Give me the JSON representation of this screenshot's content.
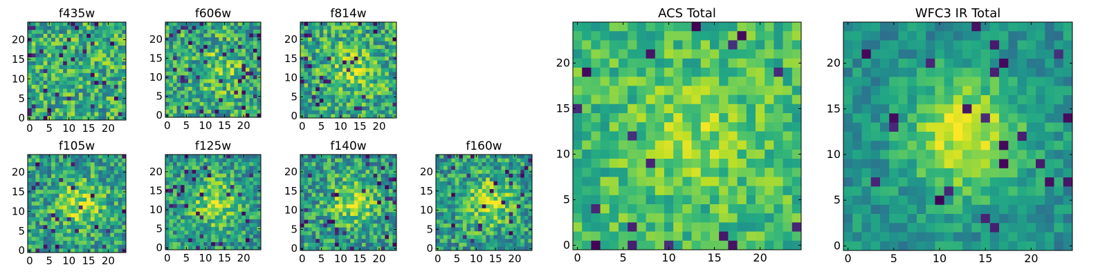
{
  "chart_data": [
    {
      "type": "heatmap",
      "title": "f435w",
      "grid_size": 25,
      "colormap": "viridis",
      "x_ticks": [
        "0",
        "5",
        "10",
        "15",
        "20"
      ],
      "y_ticks": [
        "0",
        "5",
        "10",
        "15",
        "20"
      ],
      "seed": 11,
      "blob": 0.0,
      "noise": 0.55,
      "dark_fraction": 0.05,
      "base": 0.62
    },
    {
      "type": "heatmap",
      "title": "f606w",
      "grid_size": 25,
      "colormap": "viridis",
      "x_ticks": [
        "0",
        "5",
        "10",
        "15",
        "20"
      ],
      "y_ticks": [
        "0",
        "5",
        "10",
        "15",
        "20"
      ],
      "seed": 23,
      "blob": 0.15,
      "noise": 0.55,
      "dark_fraction": 0.06,
      "base": 0.6
    },
    {
      "type": "heatmap",
      "title": "f814w",
      "grid_size": 25,
      "colormap": "viridis",
      "x_ticks": [
        "0",
        "5",
        "10",
        "15",
        "20"
      ],
      "y_ticks": [
        "0",
        "5",
        "10",
        "15",
        "20"
      ],
      "seed": 37,
      "blob": 0.2,
      "noise": 0.55,
      "dark_fraction": 0.05,
      "base": 0.6
    },
    {
      "type": "heatmap",
      "title": "f105w",
      "grid_size": 25,
      "colormap": "viridis",
      "x_ticks": [
        "0",
        "5",
        "10",
        "15",
        "20"
      ],
      "y_ticks": [
        "0",
        "5",
        "10",
        "15",
        "20"
      ],
      "seed": 41,
      "blob": 0.3,
      "noise": 0.5,
      "dark_fraction": 0.06,
      "base": 0.55
    },
    {
      "type": "heatmap",
      "title": "f125w",
      "grid_size": 25,
      "colormap": "viridis",
      "x_ticks": [
        "0",
        "5",
        "10",
        "15",
        "20"
      ],
      "y_ticks": [
        "0",
        "5",
        "10",
        "15",
        "20"
      ],
      "seed": 53,
      "blob": 0.3,
      "noise": 0.5,
      "dark_fraction": 0.06,
      "base": 0.55
    },
    {
      "type": "heatmap",
      "title": "f140w",
      "grid_size": 25,
      "colormap": "viridis",
      "x_ticks": [
        "0",
        "5",
        "10",
        "15",
        "20"
      ],
      "y_ticks": [
        "0",
        "5",
        "10",
        "15",
        "20"
      ],
      "seed": 67,
      "blob": 0.3,
      "noise": 0.5,
      "dark_fraction": 0.05,
      "base": 0.55
    },
    {
      "type": "heatmap",
      "title": "f160w",
      "grid_size": 25,
      "colormap": "viridis",
      "x_ticks": [
        "0",
        "5",
        "10",
        "15",
        "20"
      ],
      "y_ticks": [
        "0",
        "5",
        "10",
        "15",
        "20"
      ],
      "seed": 79,
      "blob": 0.3,
      "noise": 0.5,
      "dark_fraction": 0.05,
      "base": 0.55
    },
    {
      "type": "heatmap",
      "title": "ACS Total",
      "grid_size": 25,
      "colormap": "viridis",
      "x_ticks": [
        "0",
        "5",
        "10",
        "15",
        "20"
      ],
      "y_ticks": [
        "0",
        "5",
        "10",
        "15",
        "20"
      ],
      "seed": 97,
      "blob": 0.15,
      "noise": 0.35,
      "dark_fraction": 0.035,
      "base": 0.68
    },
    {
      "type": "heatmap",
      "title": "WFC3 IR Total",
      "grid_size": 25,
      "colormap": "viridis",
      "x_ticks": [
        "0",
        "5",
        "10",
        "15",
        "20"
      ],
      "y_ticks": [
        "0",
        "5",
        "10",
        "15",
        "20"
      ],
      "seed": 131,
      "blob": 0.45,
      "noise": 0.28,
      "dark_fraction": 0.04,
      "base": 0.5
    }
  ]
}
